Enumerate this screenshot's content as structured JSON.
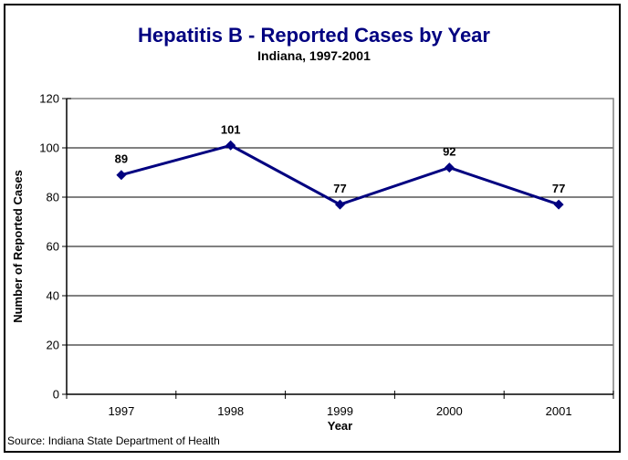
{
  "chart_data": {
    "type": "line",
    "title": "Hepatitis B - Reported Cases by Year",
    "subtitle": "Indiana, 1997-2001",
    "categories": [
      "1997",
      "1998",
      "1999",
      "2000",
      "2001"
    ],
    "series": [
      {
        "name": "Reported Cases",
        "values": [
          89,
          101,
          77,
          92,
          77
        ]
      }
    ],
    "data_labels": [
      89,
      101,
      77,
      92,
      77
    ],
    "xlabel": "Year",
    "ylabel": "Number of Reported Cases",
    "ylim": [
      0,
      120
    ],
    "yticks": [
      0,
      20,
      40,
      60,
      80,
      100,
      120
    ],
    "grid": "horizontal",
    "legend": "none",
    "marker": "diamond",
    "colors": {
      "title": "#000080",
      "line": "#000080",
      "marker": "#000080",
      "gridline": "#000000",
      "plot_border": "#808080",
      "axis": "#000000",
      "text": "#000000"
    }
  },
  "source_note": "Source: Indiana State Department of Health"
}
